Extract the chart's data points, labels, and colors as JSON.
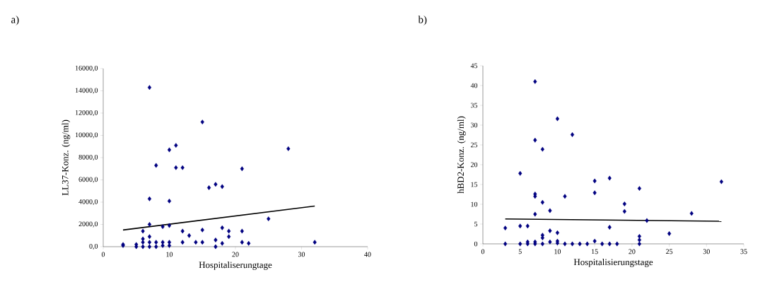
{
  "chart_data": [
    {
      "type": "scatter",
      "title": "a)",
      "xlabel": "Hospitaliserungtage",
      "ylabel": "LL37-Konz. (ng/ml)",
      "xlim": [
        0,
        40
      ],
      "xticks": [
        0,
        10,
        20,
        30,
        40
      ],
      "ylim": [
        0,
        16000
      ],
      "yticks": [
        {
          "value": 0,
          "label": "0,0"
        },
        {
          "value": 2000,
          "label": "2000,0"
        },
        {
          "value": 4000,
          "label": "4000,0"
        },
        {
          "value": 6000,
          "label": "6000,0"
        },
        {
          "value": 8000,
          "label": "8000,0"
        },
        {
          "value": 10000,
          "label": "10000,0"
        },
        {
          "value": 12000,
          "label": "12000,0"
        },
        {
          "value": 14000,
          "label": "14000,0"
        },
        {
          "value": 16000,
          "label": "16000,0"
        }
      ],
      "series": [
        {
          "type": "scatter",
          "marker": "diamond",
          "color": "#000080",
          "x": [
            3,
            3,
            5,
            5,
            6,
            6,
            6,
            6,
            7,
            7,
            7,
            7,
            7,
            7,
            8,
            8,
            8,
            9,
            9,
            9,
            10,
            10,
            10,
            10,
            10,
            11,
            11,
            12,
            12,
            12,
            13,
            14,
            15,
            15,
            15,
            16,
            17,
            17,
            17,
            18,
            18,
            18,
            19,
            19,
            21,
            21,
            21,
            22,
            25,
            28,
            32
          ],
          "values": [
            200,
            100,
            200,
            0,
            400,
            700,
            1400,
            0,
            14300,
            4300,
            2000,
            900,
            400,
            0,
            7300,
            400,
            0,
            1800,
            400,
            100,
            8700,
            4100,
            1900,
            400,
            100,
            9100,
            7100,
            7100,
            1400,
            400,
            1000,
            400,
            11200,
            1500,
            400,
            5300,
            5600,
            600,
            0,
            5400,
            1700,
            300,
            1400,
            900,
            7000,
            1400,
            400,
            300,
            2500,
            8800,
            400
          ]
        },
        {
          "type": "line",
          "color": "#000000",
          "x": [
            3,
            32
          ],
          "values": [
            1500,
            3650
          ]
        }
      ]
    },
    {
      "type": "scatter",
      "title": "b)",
      "xlabel": "Hospitalisierungstage",
      "ylabel": "hBD2-Konz. (ng/ml)",
      "xlim": [
        0,
        35
      ],
      "xticks": [
        0,
        5,
        10,
        15,
        20,
        25,
        30,
        35
      ],
      "ylim": [
        0,
        45
      ],
      "yticks": [
        0,
        5,
        10,
        15,
        20,
        25,
        30,
        35,
        40,
        45
      ],
      "series": [
        {
          "type": "scatter",
          "marker": "diamond",
          "color": "#000080",
          "x": [
            3,
            3,
            5,
            5,
            5,
            6,
            6,
            6,
            7,
            7,
            7,
            7,
            7,
            7,
            7,
            8,
            8,
            8,
            8,
            8,
            9,
            9,
            9,
            10,
            10,
            10,
            10,
            11,
            11,
            12,
            12,
            13,
            14,
            15,
            15,
            15,
            16,
            17,
            17,
            17,
            18,
            19,
            19,
            21,
            21,
            21,
            21,
            22,
            25,
            28,
            32
          ],
          "values": [
            4,
            0,
            17.8,
            4.5,
            0,
            4.5,
            0.5,
            0,
            41,
            26.2,
            12.6,
            12,
            7.5,
            0.5,
            0,
            23.9,
            10.5,
            2.2,
            1.5,
            0,
            8.4,
            3.3,
            0.5,
            31.6,
            2.8,
            0.7,
            0.2,
            12,
            0,
            27.6,
            0,
            0,
            0,
            15.9,
            12.9,
            0.7,
            0,
            16.6,
            4.2,
            0,
            0,
            10.1,
            8.2,
            14,
            1.9,
            1,
            0,
            5.9,
            2.6,
            7.7,
            15.7
          ]
        },
        {
          "type": "line",
          "color": "#000000",
          "x": [
            3,
            32
          ],
          "values": [
            6.3,
            5.7
          ]
        }
      ]
    }
  ]
}
